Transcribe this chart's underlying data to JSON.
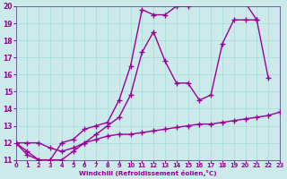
{
  "bg_color": "#cceaea",
  "grid_color": "#aadddd",
  "line_color": "#990099",
  "marker": "+",
  "xlabel": "Windchill (Refroidissement éolien,°C)",
  "xlim": [
    0,
    23
  ],
  "ylim": [
    11,
    20
  ],
  "yticks": [
    11,
    12,
    13,
    14,
    15,
    16,
    17,
    18,
    19,
    20
  ],
  "xticks": [
    0,
    1,
    2,
    3,
    4,
    5,
    6,
    7,
    8,
    9,
    10,
    11,
    12,
    13,
    14,
    15,
    16,
    17,
    18,
    19,
    20,
    21,
    22,
    23
  ],
  "curve_upper_x": [
    0,
    1,
    2,
    3,
    4,
    5,
    6,
    7,
    8,
    9,
    10,
    11,
    12,
    13,
    14,
    15,
    16,
    17,
    18,
    19,
    20,
    21
  ],
  "curve_upper_y": [
    12.0,
    11.3,
    11.0,
    11.0,
    12.0,
    12.2,
    12.8,
    13.0,
    13.2,
    14.5,
    16.5,
    19.8,
    19.5,
    19.5,
    20.0,
    20.0,
    20.2,
    20.2,
    20.2,
    20.2,
    20.2,
    19.2
  ],
  "curve_mid_x": [
    0,
    1,
    2,
    3,
    4,
    5,
    6,
    7,
    8,
    9,
    10,
    11,
    12,
    13,
    14,
    15,
    16,
    17,
    18,
    19,
    20,
    21,
    22
  ],
  "curve_mid_y": [
    12.0,
    11.5,
    11.0,
    11.0,
    11.0,
    11.5,
    12.0,
    12.5,
    13.0,
    13.5,
    14.8,
    17.3,
    18.5,
    16.8,
    15.5,
    15.5,
    14.5,
    14.8,
    17.8,
    19.2,
    19.2,
    19.2,
    15.8
  ],
  "curve_lower_x": [
    0,
    1,
    2,
    3,
    4,
    5,
    6,
    7,
    8,
    9,
    10,
    11,
    12,
    13,
    14,
    15,
    16,
    17,
    18,
    19,
    20,
    21,
    22,
    23
  ],
  "curve_lower_y": [
    12.0,
    12.0,
    12.0,
    11.7,
    11.5,
    11.7,
    12.0,
    12.2,
    12.4,
    12.5,
    12.5,
    12.6,
    12.7,
    12.8,
    12.9,
    13.0,
    13.1,
    13.1,
    13.2,
    13.3,
    13.4,
    13.5,
    13.6,
    13.8
  ],
  "marker_size": 4,
  "linewidth": 1.0
}
